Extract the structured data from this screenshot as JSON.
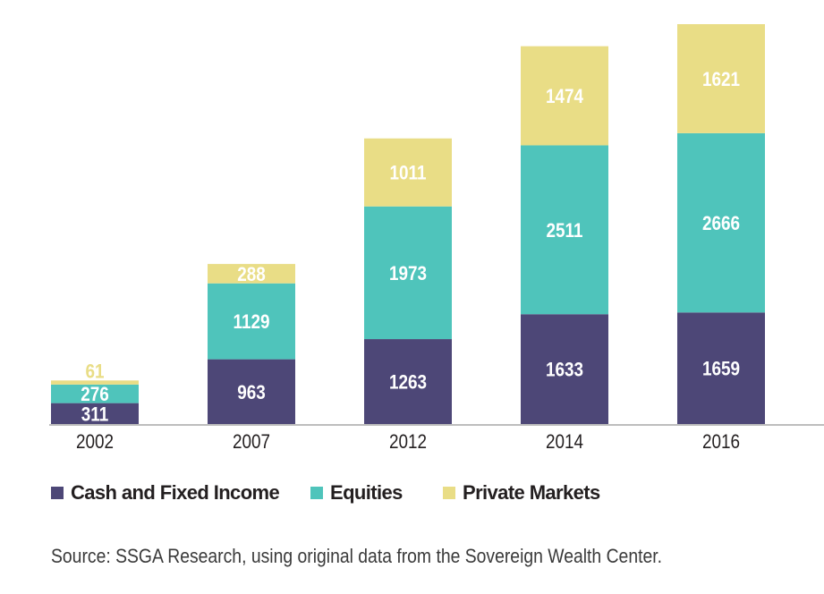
{
  "chart_data": {
    "type": "bar",
    "stacked": true,
    "categories": [
      "2002",
      "2007",
      "2012",
      "2014",
      "2016"
    ],
    "series": [
      {
        "name": "Cash and Fixed Income",
        "color": "#4d4777",
        "label_color": "#ffffff",
        "values": [
          311,
          963,
          1263,
          1633,
          1659
        ]
      },
      {
        "name": "Equities",
        "color": "#4fc4bb",
        "label_color": "#ffffff",
        "values": [
          276,
          1129,
          1973,
          2511,
          2666
        ]
      },
      {
        "name": "Private Markets",
        "color": "#e9dd86",
        "label_color": "#ffffff",
        "values": [
          61,
          288,
          1011,
          1474,
          1621
        ]
      }
    ],
    "ylim": [
      0,
      5946
    ],
    "grid": false,
    "legend": "bottom-left",
    "title": "",
    "xlabel": "",
    "ylabel": ""
  },
  "source": "Source: SSGA Research, using original data from the Sovereign Wealth Center."
}
